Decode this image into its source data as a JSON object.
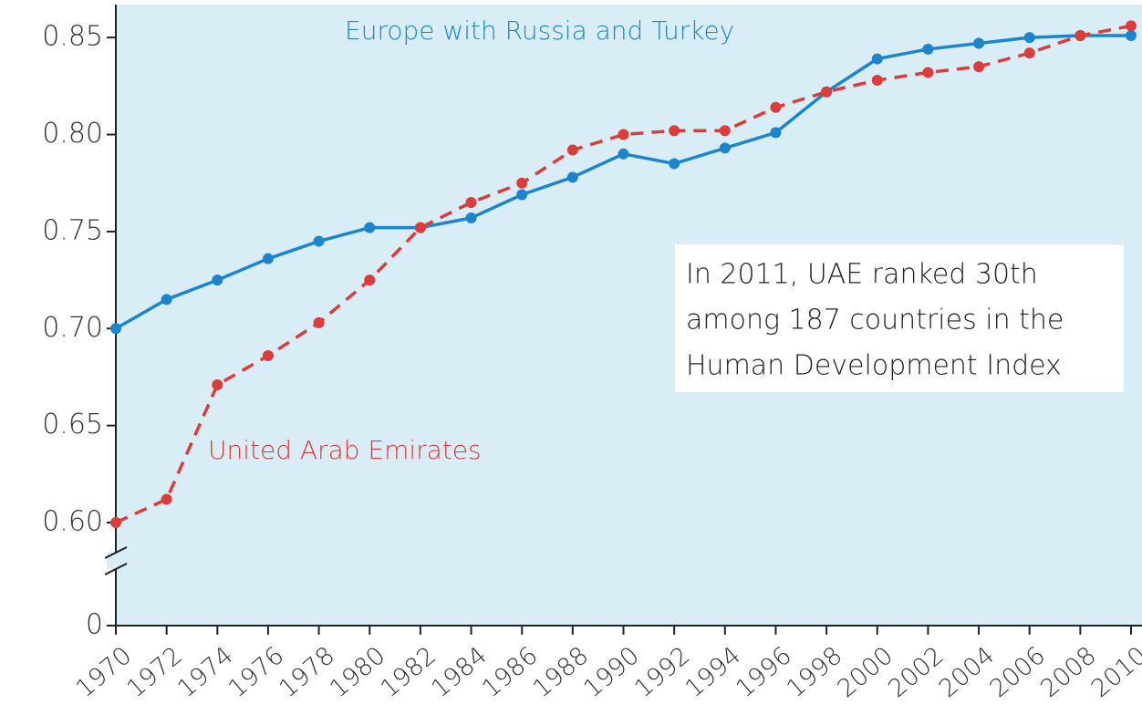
{
  "chart_data": {
    "type": "line",
    "x": [
      1970,
      1972,
      1974,
      1976,
      1978,
      1980,
      1982,
      1984,
      1986,
      1988,
      1990,
      1992,
      1994,
      1996,
      1998,
      2000,
      2002,
      2004,
      2006,
      2008,
      2010
    ],
    "series": [
      {
        "name": "Europe with Russia and Turkey",
        "color": "#1b86cf",
        "dash": false,
        "values": [
          0.7,
          0.715,
          0.725,
          0.736,
          0.745,
          0.752,
          0.752,
          0.757,
          0.769,
          0.778,
          0.79,
          0.785,
          0.793,
          0.801,
          0.822,
          0.839,
          0.844,
          0.847,
          0.85,
          0.851,
          0.851
        ]
      },
      {
        "name": "United Arab Emirates",
        "color": "#de3b3b",
        "dash": true,
        "values": [
          0.6,
          0.612,
          0.671,
          0.686,
          0.703,
          0.725,
          0.752,
          0.765,
          0.775,
          0.792,
          0.8,
          0.802,
          0.802,
          0.814,
          0.822,
          0.828,
          0.832,
          0.835,
          0.842,
          0.851,
          0.856
        ]
      }
    ],
    "xlim": [
      1970,
      2010
    ],
    "xticks": [
      1970,
      1972,
      1974,
      1976,
      1978,
      1980,
      1982,
      1984,
      1986,
      1988,
      1990,
      1992,
      1994,
      1996,
      1998,
      2000,
      2002,
      2004,
      2006,
      2008,
      2010
    ],
    "ylim": [
      0.6,
      0.867
    ],
    "yticks": [
      0,
      {
        "value": 0.6,
        "label": "0.60"
      },
      {
        "value": 0.65,
        "label": "0.65"
      },
      {
        "value": 0.7,
        "label": "0.70"
      },
      {
        "value": 0.75,
        "label": "0.75"
      },
      {
        "value": 0.8,
        "label": "0.80"
      },
      {
        "value": 0.85,
        "label": "0.85"
      }
    ],
    "axis_break": true,
    "annotation": [
      "In 2011, UAE ranked 30th",
      "among 187 countries in the",
      "Human Development Index"
    ]
  }
}
